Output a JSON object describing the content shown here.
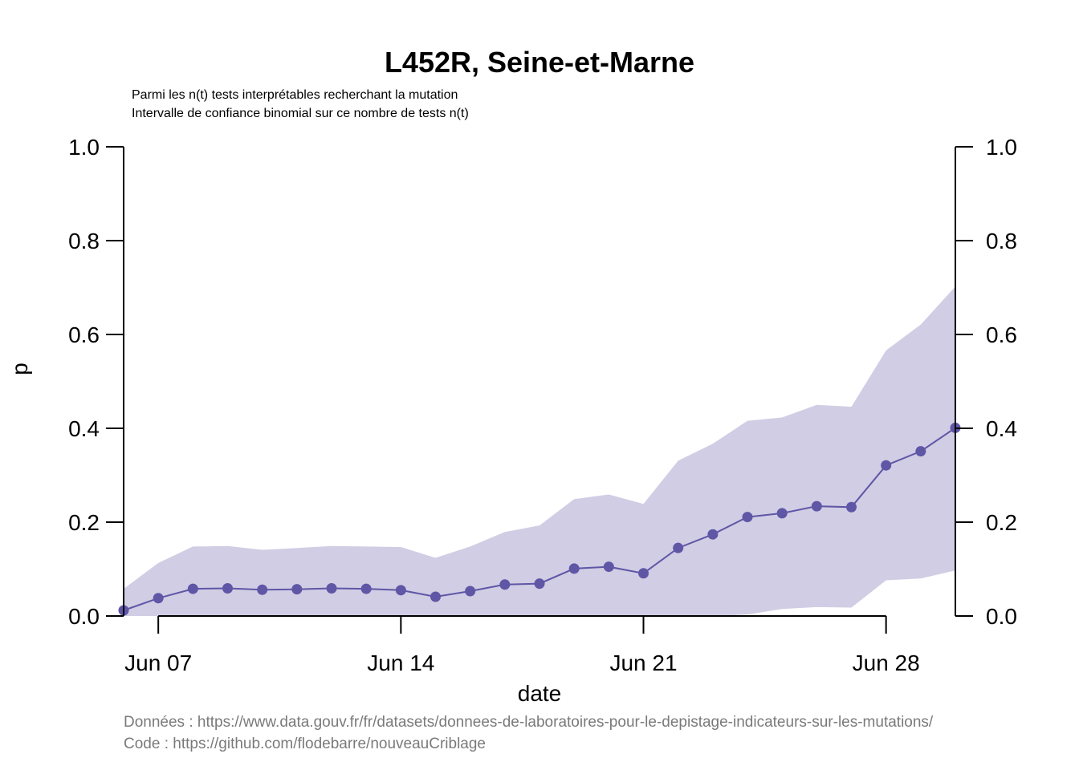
{
  "chart_data": {
    "type": "line",
    "title": "L452R, Seine-et-Marne",
    "subtitle_lines": [
      "Parmi les n(t) tests interprétables recherchant la mutation",
      "Intervalle de confiance binomial sur ce nombre de tests n(t)"
    ],
    "xlabel": "date",
    "ylabel": "p",
    "ylim": [
      0,
      1
    ],
    "y_ticks": [
      "0.0",
      "0.2",
      "0.4",
      "0.6",
      "0.8",
      "1.0"
    ],
    "x_tick_labels": [
      {
        "label": "Jun 07",
        "date": "2021-06-07"
      },
      {
        "label": "Jun 14",
        "date": "2021-06-14"
      },
      {
        "label": "Jun 21",
        "date": "2021-06-21"
      },
      {
        "label": "Jun 28",
        "date": "2021-06-28"
      }
    ],
    "xlim": [
      "2021-06-06",
      "2021-06-30"
    ],
    "dates": [
      "2021-06-06",
      "2021-06-07",
      "2021-06-08",
      "2021-06-09",
      "2021-06-10",
      "2021-06-11",
      "2021-06-12",
      "2021-06-13",
      "2021-06-14",
      "2021-06-15",
      "2021-06-16",
      "2021-06-17",
      "2021-06-18",
      "2021-06-19",
      "2021-06-20",
      "2021-06-21",
      "2021-06-22",
      "2021-06-23",
      "2021-06-24",
      "2021-06-25",
      "2021-06-26",
      "2021-06-27",
      "2021-06-28",
      "2021-06-29",
      "2021-06-30"
    ],
    "series": [
      {
        "values": [
          0.012,
          0.038,
          0.058,
          0.059,
          0.056,
          0.057,
          0.059,
          0.058,
          0.055,
          0.041,
          0.053,
          0.067,
          0.069,
          0.101,
          0.105,
          0.091,
          0.145,
          0.174,
          0.211,
          0.219,
          0.234,
          0.232,
          0.321,
          0.351,
          0.401
        ],
        "ci_lower": [
          0.0,
          0.0,
          0.0,
          0.0,
          0.0,
          0.0,
          0.0,
          0.0,
          0.0,
          0.0,
          0.0,
          0.0,
          0.0,
          0.0,
          0.0,
          0.0,
          0.0,
          0.0,
          0.003,
          0.015,
          0.019,
          0.018,
          0.076,
          0.08,
          0.097
        ],
        "ci_upper": [
          0.058,
          0.113,
          0.148,
          0.149,
          0.141,
          0.145,
          0.149,
          0.148,
          0.147,
          0.124,
          0.148,
          0.179,
          0.193,
          0.249,
          0.259,
          0.239,
          0.331,
          0.367,
          0.416,
          0.423,
          0.45,
          0.446,
          0.566,
          0.621,
          0.702
        ]
      }
    ],
    "colors": {
      "line": "#5f56a6",
      "band": "#d0cde4"
    }
  },
  "caption_lines": [
    "Données : https://www.data.gouv.fr/fr/datasets/donnees-de-laboratoires-pour-le-depistage-indicateurs-sur-les-mutations/",
    "Code : https://github.com/flodebarre/nouveauCriblage"
  ]
}
